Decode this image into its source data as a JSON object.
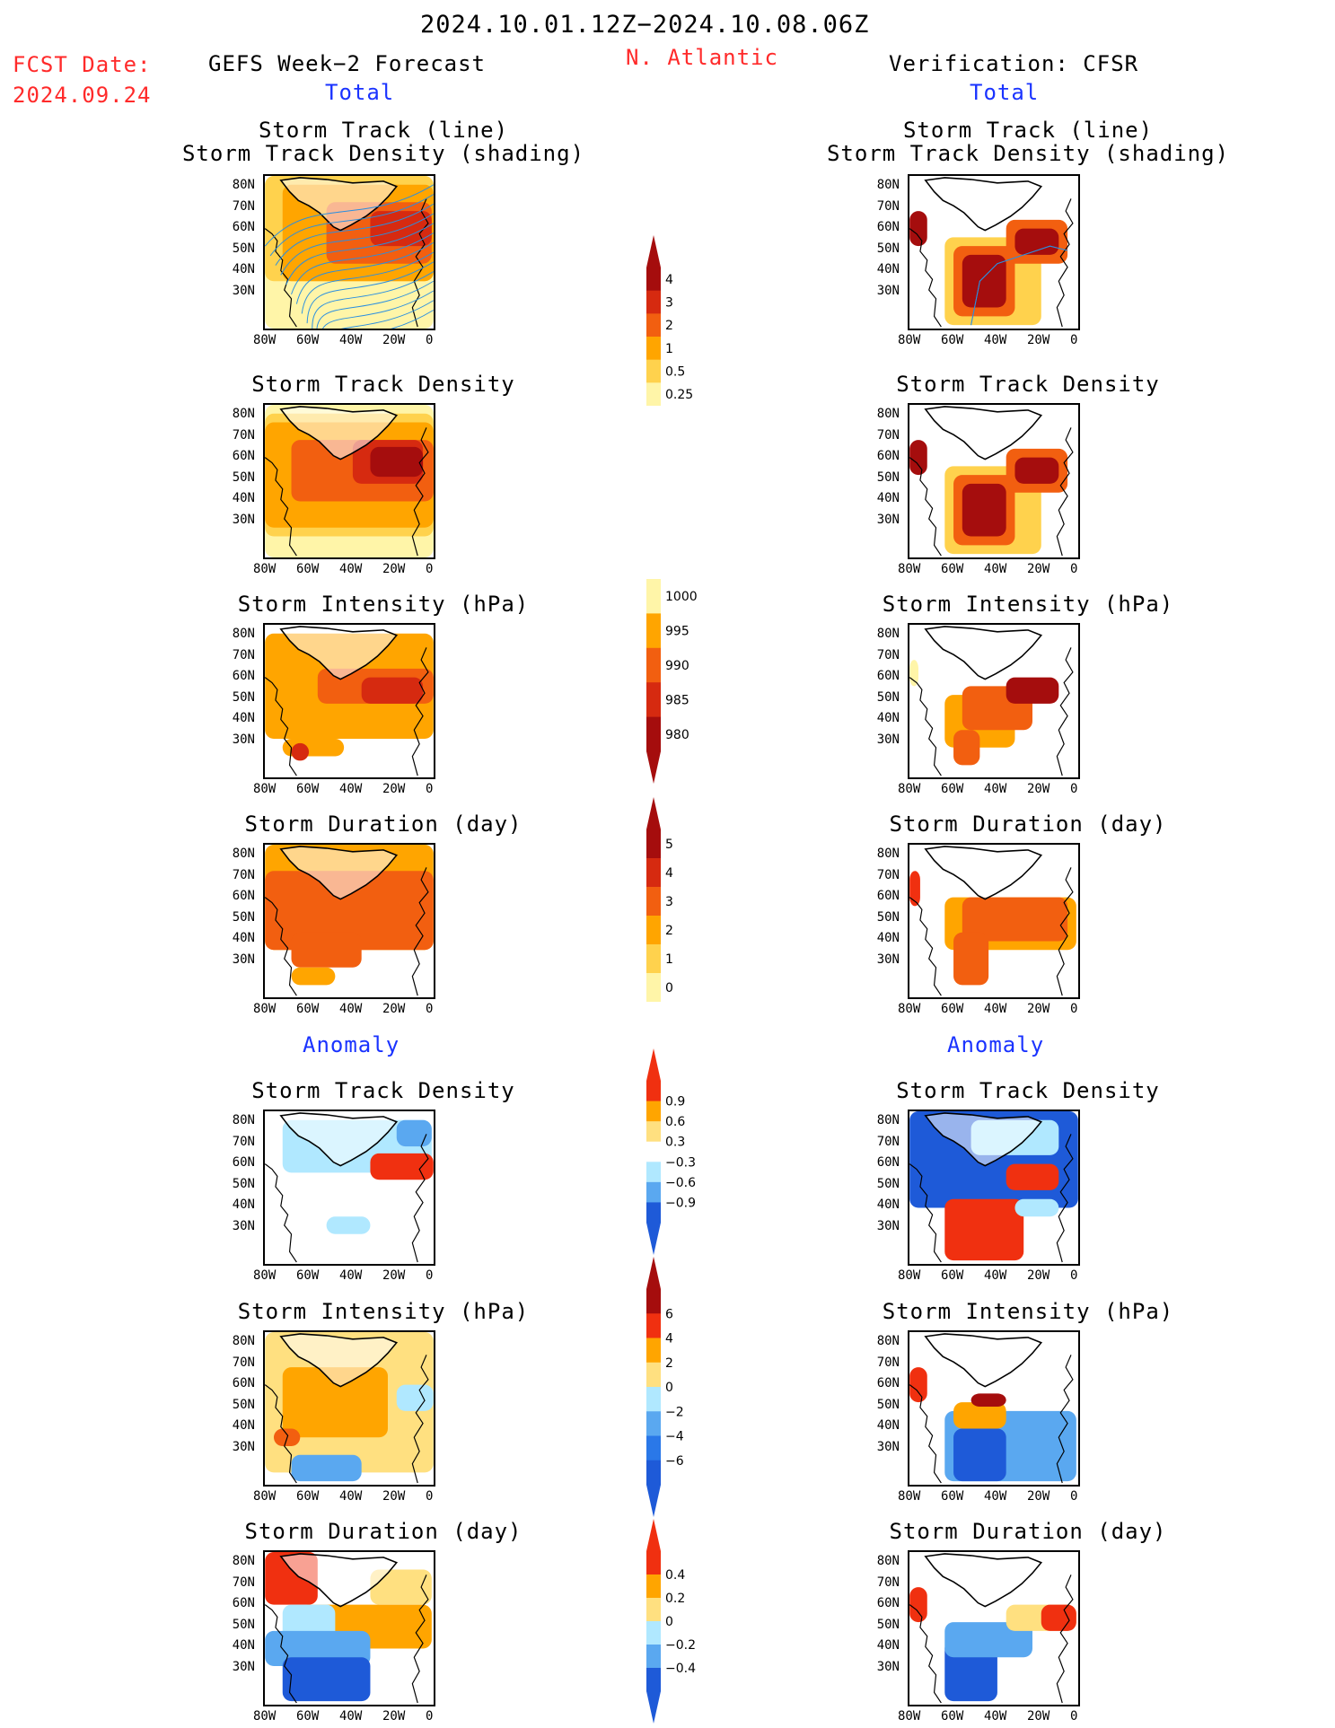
{
  "header": {
    "period": "2024.10.01.12Z−2024.10.08.06Z",
    "fcst_label": "FCST Date:",
    "fcst_date": "2024.09.24",
    "left_title": "GEFS Week−2 Forecast",
    "region": "N. Atlantic",
    "right_title": "Verification: CFSR"
  },
  "sections": {
    "total": "Total",
    "anomaly": "Anomaly"
  },
  "axes": {
    "lat_ticks": [
      "80N",
      "70N",
      "60N",
      "50N",
      "40N",
      "30N"
    ],
    "lon_ticks": [
      "80W",
      "60W",
      "40W",
      "20W",
      "0"
    ]
  },
  "panels": {
    "left": [
      {
        "title": "Storm Track (line)\nStorm Track Density (shading)"
      },
      {
        "title": "Storm Track Density"
      },
      {
        "title": "Storm Intensity (hPa)"
      },
      {
        "title": "Storm Duration (day)"
      },
      {
        "title": "Storm Track Density"
      },
      {
        "title": "Storm Intensity (hPa)"
      },
      {
        "title": "Storm Duration (day)"
      }
    ],
    "right": [
      {
        "title": "Storm Track (line)\nStorm Track Density (shading)"
      },
      {
        "title": "Storm Track Density"
      },
      {
        "title": "Storm Intensity (hPa)"
      },
      {
        "title": "Storm Duration (day)"
      },
      {
        "title": "Storm Track Density"
      },
      {
        "title": "Storm Intensity (hPa)"
      },
      {
        "title": "Storm Duration (day)"
      }
    ]
  },
  "colorbars": {
    "density": {
      "labels": [
        "4",
        "3",
        "2",
        "1",
        "0.5",
        "0.25"
      ],
      "colors": [
        "#a50d0d",
        "#d62a10",
        "#f25f10",
        "#ffa500",
        "#ffd24d",
        "#fff5a8"
      ]
    },
    "intensity": {
      "labels": [
        "1000",
        "995",
        "990",
        "985",
        "980"
      ],
      "colors": [
        "#fff5a8",
        "#ffa500",
        "#f25f10",
        "#d62a10",
        "#a50d0d"
      ]
    },
    "duration": {
      "labels": [
        "5",
        "4",
        "3",
        "2",
        "1",
        "0"
      ],
      "colors": [
        "#a50d0d",
        "#d62a10",
        "#f25f10",
        "#ffa500",
        "#ffd24d",
        "#fff5a8"
      ]
    },
    "density_anom": {
      "labels": [
        "0.9",
        "0.6",
        "0.3",
        "−0.3",
        "−0.6",
        "−0.9"
      ],
      "colors": [
        "#f03010",
        "#ffa500",
        "#ffe080",
        "#ffffff",
        "#b0e8ff",
        "#5aa8f0",
        "#1e5ad8"
      ]
    },
    "intensity_anom": {
      "labels": [
        "6",
        "4",
        "2",
        "0",
        "−2",
        "−4",
        "−6"
      ],
      "colors": [
        "#a50d0d",
        "#f03010",
        "#ffa500",
        "#ffe080",
        "#b0e8ff",
        "#5aa8f0",
        "#2a78e8",
        "#1e5ad8"
      ]
    },
    "duration_anom": {
      "labels": [
        "0.4",
        "0.2",
        "0",
        "−0.2",
        "−0.4"
      ],
      "colors": [
        "#f03010",
        "#ffa500",
        "#ffe080",
        "#b0e8ff",
        "#5aa8f0",
        "#1e5ad8"
      ]
    }
  },
  "chart_data": [
    {
      "type": "heatmap",
      "title": "Storm Track (line)\nStorm Track Density (shading)",
      "panel": "GEFS Week-2 Forecast",
      "xlim": [
        -80,
        0
      ],
      "ylim": [
        25,
        85
      ]
    },
    {
      "type": "heatmap",
      "title": "Storm Track Density",
      "panel": "GEFS Week-2 Forecast",
      "xlim": [
        -80,
        0
      ],
      "ylim": [
        25,
        85
      ],
      "levels": [
        0.25,
        0.5,
        1,
        2,
        3,
        4
      ]
    },
    {
      "type": "heatmap",
      "title": "Storm Intensity (hPa)",
      "panel": "GEFS Week-2 Forecast",
      "levels": [
        980,
        985,
        990,
        995,
        1000
      ]
    },
    {
      "type": "heatmap",
      "title": "Storm Duration (day)",
      "panel": "GEFS Week-2 Forecast",
      "levels": [
        0,
        1,
        2,
        3,
        4,
        5
      ]
    },
    {
      "type": "heatmap",
      "title": "Storm Track Density",
      "panel": "GEFS Week-2 Forecast Anomaly",
      "levels": [
        -0.9,
        -0.6,
        -0.3,
        0.3,
        0.6,
        0.9
      ]
    },
    {
      "type": "heatmap",
      "title": "Storm Intensity (hPa)",
      "panel": "GEFS Week-2 Forecast Anomaly",
      "levels": [
        -6,
        -4,
        -2,
        0,
        2,
        4,
        6
      ]
    },
    {
      "type": "heatmap",
      "title": "Storm Duration (day)",
      "panel": "GEFS Week-2 Forecast Anomaly",
      "levels": [
        -0.4,
        -0.2,
        0,
        0.2,
        0.4
      ]
    }
  ]
}
